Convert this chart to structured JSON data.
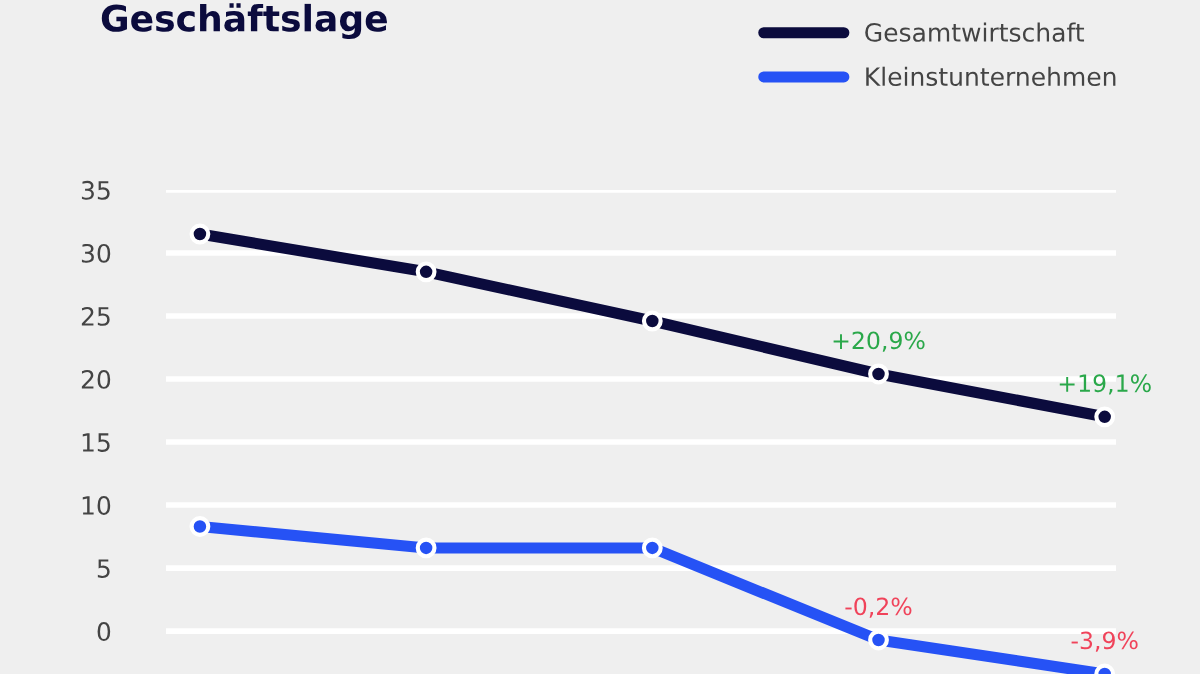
{
  "chart_data": {
    "type": "line",
    "title": "Geschäftslage",
    "categories": [
      null,
      null,
      null,
      null,
      null
    ],
    "series": [
      {
        "name": "Gesamtwirtschaft",
        "color": "#0b0b3d",
        "values": [
          31.5,
          28.5,
          24.6,
          20.4,
          17
        ]
      },
      {
        "name": "Kleinstunternehmen",
        "color": "#2652f5",
        "values": [
          8.3,
          6.6,
          6.6,
          -0.7,
          -3.4
        ]
      }
    ],
    "annotations": [
      "+20,9%",
      "+19,1%",
      "-0,2%",
      "-3,9%"
    ],
    "ylim": [
      -3.4,
      35
    ],
    "yticks": [
      0,
      5,
      10,
      15,
      20,
      25,
      30,
      35
    ],
    "tick_labels": "y",
    "grid": "y",
    "legend": "top right",
    "marker": "circle"
  }
}
